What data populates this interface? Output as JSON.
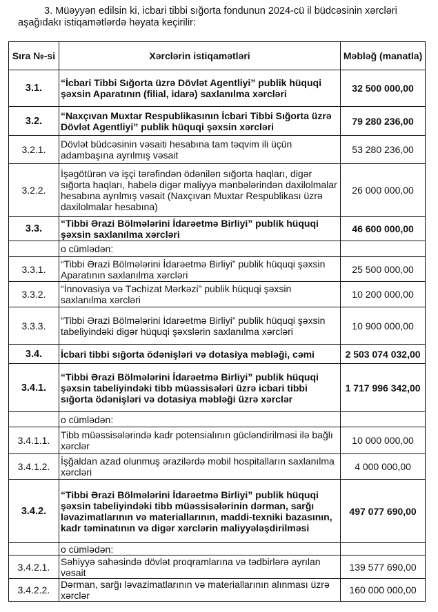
{
  "intro": "3. Müəyyən edilsin ki, icbari tibbi sığorta fondunun 2024-cü il büdcəsinin xərcləri aşağıdakı istiqamətlərdə həyata keçirilir:",
  "table": {
    "headers": {
      "num": "Sıra №-si",
      "desc": "Xərclərin istiqamətləri",
      "amount": "Məbləğ (manatla)"
    },
    "rows": [
      {
        "num": "3.1.",
        "desc": "“İcbari Tibbi Sığorta üzrə Dövlət Agentliyi” publik hüquqi şəxsin Aparatının (filial, idarə) saxlanılma xərcləri",
        "amount": "32 500 000,00",
        "bold": true
      },
      {
        "num": "3.2.",
        "desc": "“Naxçıvan Muxtar Respublikasının İcbari Tibbi Sığorta üzrə Dövlət Agentliyi” publik hüquqi şəxsin xərcləri",
        "amount": "79 280 236,00",
        "bold": true
      },
      {
        "num": "3.2.1.",
        "desc": "Dövlət büdcəsinin vəsaiti hesabına tam təqvim ili üçün adambaşına ayrılmış vəsait",
        "amount": "53 280 236,00",
        "bold": false
      },
      {
        "num": "3.2.2.",
        "desc": "İşəgötürən və işçi tərəfindən ödənilən sığorta haqları, digər sığorta haqları, habelə digər maliyyə mənbələrindən daxilolmalar hesabına ayrılmış vəsait (Naxçıvan Muxtar Respublikası üzrə daxilolmalar hesabına)",
        "amount": "26 000 000,00",
        "bold": false
      },
      {
        "num": "3.3.",
        "desc": "“Tibbi Ərazi Bölmələrini İdarəetmə Birliyi” publik hüquqi şəxsin saxlanılma xərcləri",
        "amount": "46 600 000,00",
        "bold": true
      },
      {
        "num": "",
        "desc": "o cümlədən:",
        "amount": "",
        "bold": false
      },
      {
        "num": "3.3.1.",
        "desc": "“Tibbi Ərazi Bölmələrini İdarəetmə Birliyi” publik hüquqi şəxsin Aparatının saxlanılma xərcləri",
        "amount": "25 500 000,00",
        "bold": false
      },
      {
        "num": "3.3.2.",
        "desc": "“İnnovasiya və Təchizat Mərkəzi” publik hüquqi şəxsin saxlanılma xərcləri",
        "amount": "10 200 000,00",
        "bold": false
      },
      {
        "num": "3.3.3.",
        "desc": "“Tibbi Ərazi Bölmələrini İdarəetmə Birliyi” publik hüquqi şəxsin tabeliyindəki digər hüquqi şəxslərin saxlanılma xərcləri",
        "amount": "10 900 000,00",
        "bold": false
      },
      {
        "num": "3.4.",
        "desc": "İcbari tibbi sığorta ödənişləri və dotasiya məbləği, cəmi",
        "amount": "2 503 074 032,00",
        "bold": true
      },
      {
        "num": "3.4.1.",
        "desc": "“Tibbi Ərazi Bölmələrini İdarəetmə Birliyi” publik hüquqi şəxsin tabeliyindəki tibb müəssisələri üzrə icbari tibbi sığorta ödənişləri və dotasiya məbləği üzrə xərclər",
        "amount": "1 717 996 342,00",
        "bold": true
      },
      {
        "num": "",
        "desc": "o cümlədən:",
        "amount": "",
        "bold": false
      },
      {
        "num": "3.4.1.1.",
        "desc": "Tibb müəssisələrində kadr potensialının gücləndirilməsi  ilə bağlı xərclər",
        "amount": "10 000 000,00",
        "bold": false
      },
      {
        "num": "3.4.1.2.",
        "desc": "İşğaldan azad olunmuş ərazilərdə mobil hospitalların saxlanılma xərcləri",
        "amount": "4 000 000,00",
        "bold": false
      },
      {
        "num": "3.4.2.",
        "desc": "“Tibbi Ərazi Bölmələrini İdarəetmə Birliyi” publik hüquqi şəxsin  tabeliyindəki tibb müəssisələrinin dərman, sarğı ləvazimatlarının və materiallarının, maddi-texniki bazasının, kadr təminatının və digər xərclərin maliyyələşdirilməsi",
        "amount": "497 077 690,00",
        "bold": true
      },
      {
        "num": "",
        "desc": "o cümlədən:",
        "amount": "",
        "bold": false
      },
      {
        "num": "3.4.2.1.",
        "desc": "Səhiyyə sahəsində dövlət proqramlarına və tədbirlərə ayrılan vəsait",
        "amount": "139 577 690,00",
        "bold": false
      },
      {
        "num": "3.4.2.2.",
        "desc": "Dərman, sarğı ləvazimatlarının və materiallarının alınması üzrə xərclər",
        "amount": "160 000 000,00",
        "bold": false
      }
    ]
  }
}
